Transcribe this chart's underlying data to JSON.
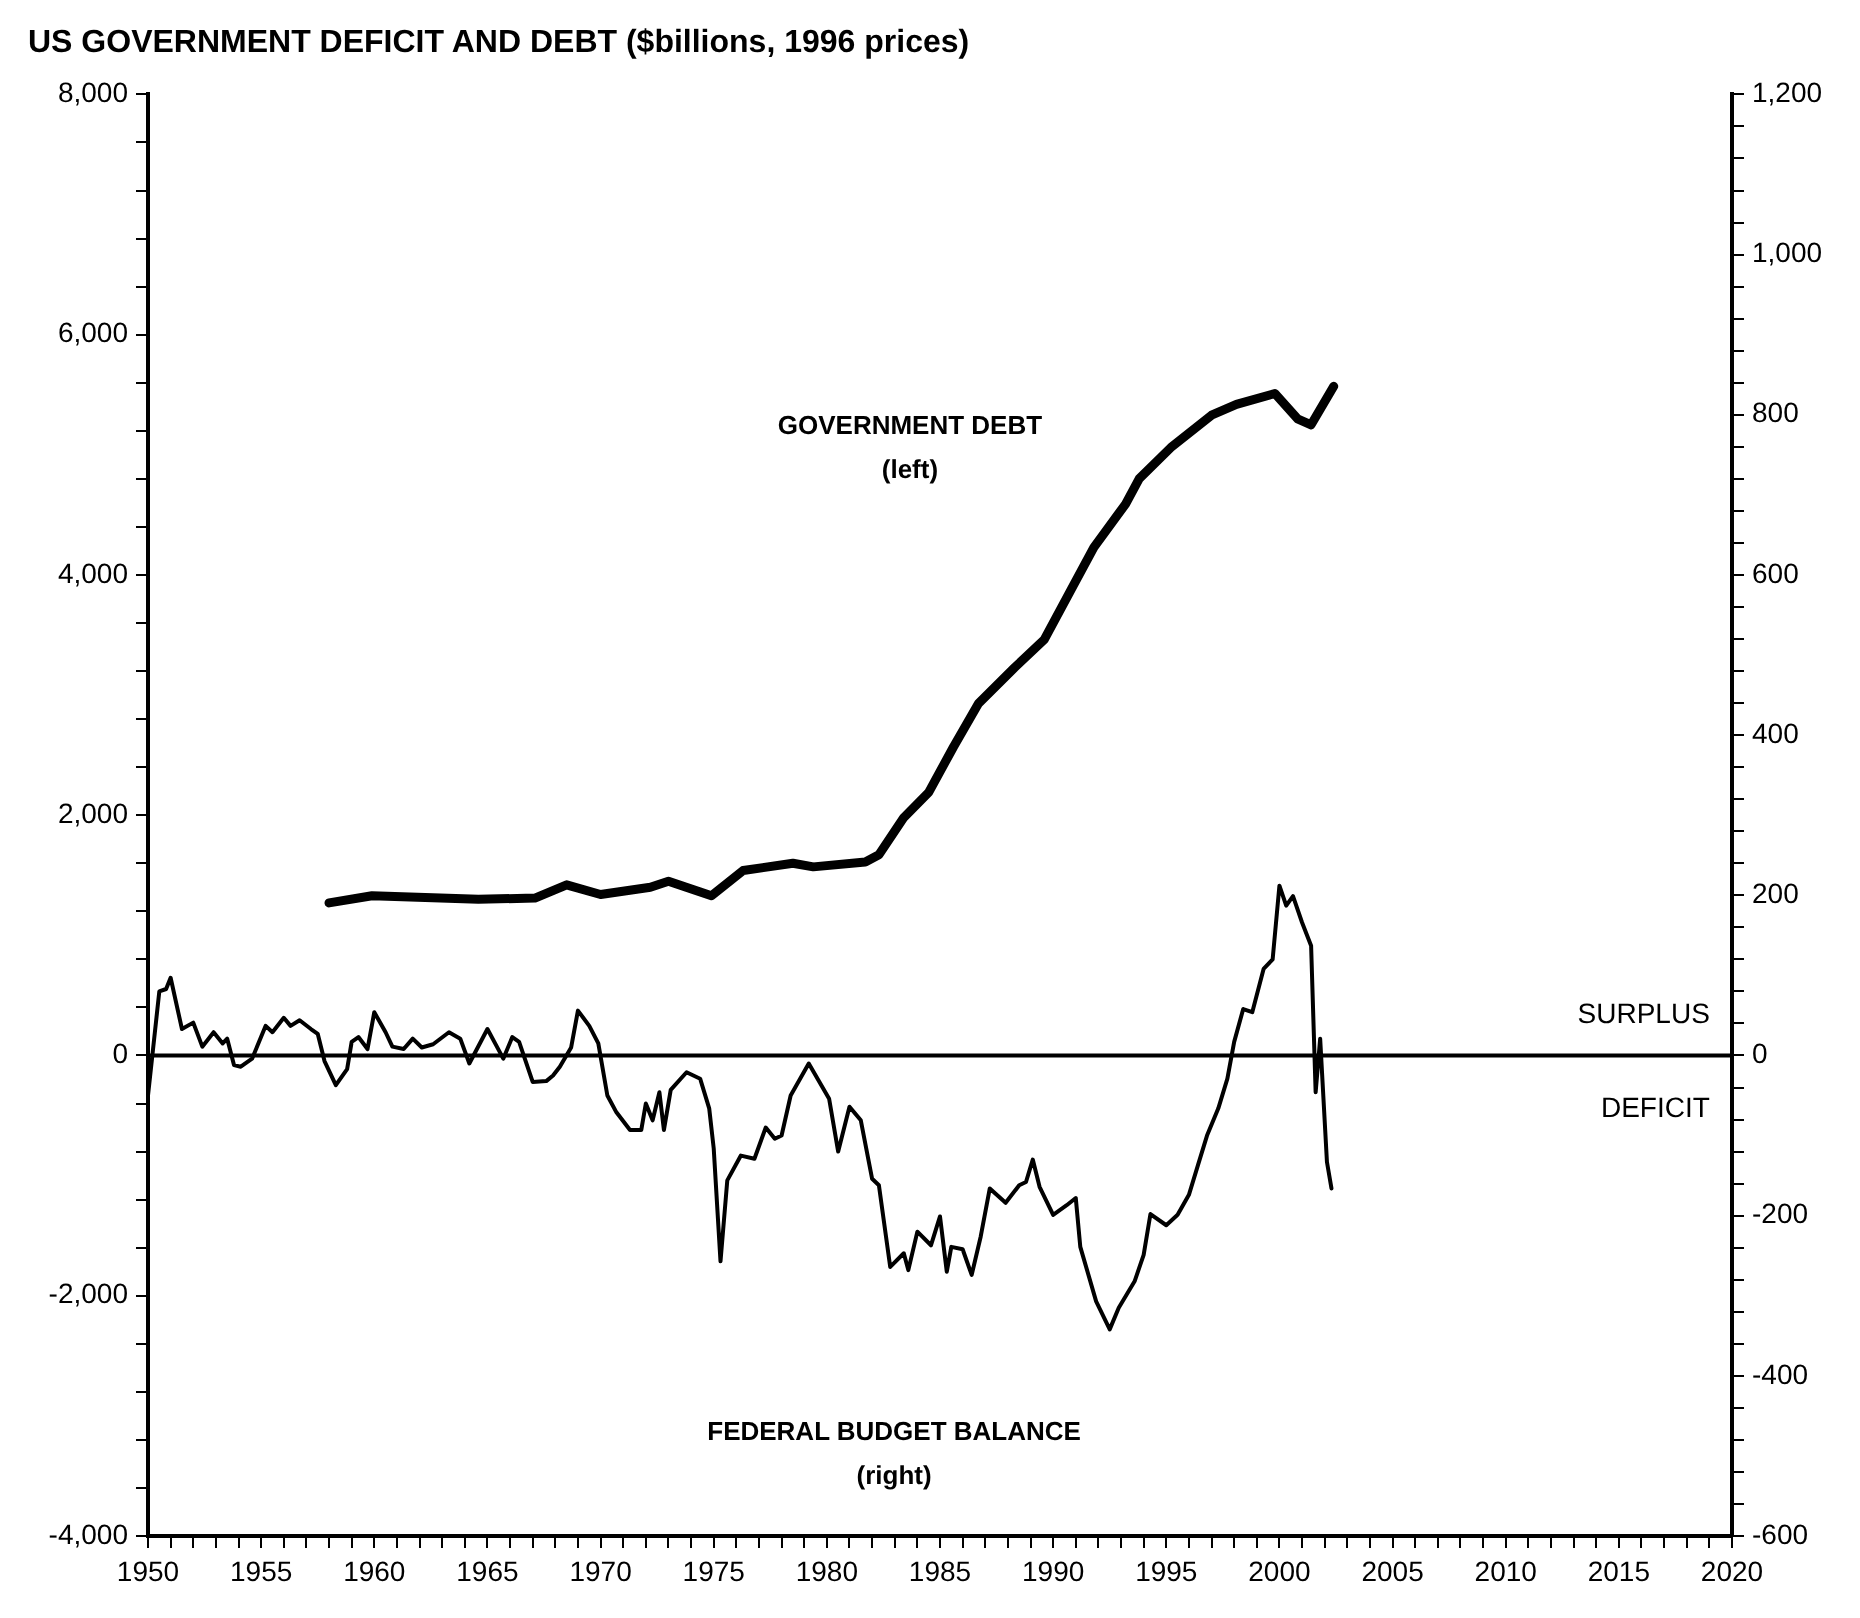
{
  "chart_data": {
    "type": "line",
    "title": "US GOVERNMENT DEFICIT AND DEBT ($billions, 1996 prices)",
    "xlim": [
      1950,
      2020
    ],
    "xticks": [
      1950,
      {
        "value": 1951,
        "label": null
      },
      {
        "value": 1952,
        "label": null
      },
      {
        "value": 1953,
        "label": null
      },
      {
        "value": 1954,
        "label": null
      },
      1955,
      {
        "value": 1956,
        "label": null
      },
      {
        "value": 1957,
        "label": null
      },
      {
        "value": 1958,
        "label": null
      },
      {
        "value": 1959,
        "label": null
      },
      1960,
      {
        "value": 1961,
        "label": null
      },
      {
        "value": 1962,
        "label": null
      },
      {
        "value": 1963,
        "label": null
      },
      {
        "value": 1964,
        "label": null
      },
      1965,
      {
        "value": 1966,
        "label": null
      },
      {
        "value": 1967,
        "label": null
      },
      {
        "value": 1968,
        "label": null
      },
      {
        "value": 1969,
        "label": null
      },
      1970,
      {
        "value": 1971,
        "label": null
      },
      {
        "value": 1972,
        "label": null
      },
      {
        "value": 1973,
        "label": null
      },
      {
        "value": 1974,
        "label": null
      },
      1975,
      {
        "value": 1976,
        "label": null
      },
      {
        "value": 1977,
        "label": null
      },
      {
        "value": 1978,
        "label": null
      },
      {
        "value": 1979,
        "label": null
      },
      1980,
      {
        "value": 1981,
        "label": null
      },
      {
        "value": 1982,
        "label": null
      },
      {
        "value": 1983,
        "label": null
      },
      {
        "value": 1984,
        "label": null
      },
      1985,
      {
        "value": 1986,
        "label": null
      },
      {
        "value": 1987,
        "label": null
      },
      {
        "value": 1988,
        "label": null
      },
      {
        "value": 1989,
        "label": null
      },
      1990,
      {
        "value": 1991,
        "label": null
      },
      {
        "value": 1992,
        "label": null
      },
      {
        "value": 1993,
        "label": null
      },
      {
        "value": 1994,
        "label": null
      },
      1995,
      {
        "value": 1996,
        "label": null
      },
      {
        "value": 1997,
        "label": null
      },
      {
        "value": 1998,
        "label": null
      },
      {
        "value": 1999,
        "label": null
      },
      2000,
      {
        "value": 2001,
        "label": null
      },
      {
        "value": 2002,
        "label": null
      },
      {
        "value": 2003,
        "label": null
      },
      {
        "value": 2004,
        "label": null
      },
      2005,
      {
        "value": 2006,
        "label": null
      },
      {
        "value": 2007,
        "label": null
      },
      {
        "value": 2008,
        "label": null
      },
      {
        "value": 2009,
        "label": null
      },
      2010,
      {
        "value": 2011,
        "label": null
      },
      {
        "value": 2012,
        "label": null
      },
      {
        "value": 2013,
        "label": null
      },
      {
        "value": 2014,
        "label": null
      },
      2015,
      {
        "value": 2016,
        "label": null
      },
      {
        "value": 2017,
        "label": null
      },
      {
        "value": 2018,
        "label": null
      },
      {
        "value": 2019,
        "label": null
      },
      2020
    ],
    "ylim": [
      -4000,
      8000
    ],
    "yticks": [
      {
        "value": -4000,
        "label": "-4,000"
      },
      {
        "value": -3600,
        "label": null
      },
      {
        "value": -3200,
        "label": null
      },
      {
        "value": -2800,
        "label": null
      },
      {
        "value": -2400,
        "label": null
      },
      {
        "value": -2000,
        "label": "-2,000"
      },
      {
        "value": -1600,
        "label": null
      },
      {
        "value": -1200,
        "label": null
      },
      {
        "value": -800,
        "label": null
      },
      {
        "value": -400,
        "label": null
      },
      0,
      {
        "value": 400,
        "label": null
      },
      {
        "value": 800,
        "label": null
      },
      {
        "value": 1200,
        "label": null
      },
      {
        "value": 1600,
        "label": null
      },
      {
        "value": 2000,
        "label": "2,000"
      },
      {
        "value": 2400,
        "label": null
      },
      {
        "value": 2800,
        "label": null
      },
      {
        "value": 3200,
        "label": null
      },
      {
        "value": 3600,
        "label": null
      },
      {
        "value": 4000,
        "label": "4,000"
      },
      {
        "value": 4400,
        "label": null
      },
      {
        "value": 4800,
        "label": null
      },
      {
        "value": 5200,
        "label": null
      },
      {
        "value": 5600,
        "label": null
      },
      {
        "value": 6000,
        "label": "6,000"
      },
      {
        "value": 6400,
        "label": null
      },
      {
        "value": 6800,
        "label": null
      },
      {
        "value": 7200,
        "label": null
      },
      {
        "value": 7600,
        "label": null
      },
      {
        "value": 8000,
        "label": "8,000"
      }
    ],
    "y2lim": [
      -600,
      1200
    ],
    "y2ticks": [
      -600,
      {
        "value": -560,
        "label": null
      },
      {
        "value": -520,
        "label": null
      },
      {
        "value": -480,
        "label": null
      },
      {
        "value": -440,
        "label": null
      },
      -400,
      {
        "value": -360,
        "label": null
      },
      {
        "value": -320,
        "label": null
      },
      {
        "value": -280,
        "label": null
      },
      {
        "value": -240,
        "label": null
      },
      -200,
      {
        "value": -160,
        "label": null
      },
      {
        "value": -120,
        "label": null
      },
      {
        "value": -80,
        "label": null
      },
      {
        "value": -40,
        "label": null
      },
      0,
      {
        "value": 40,
        "label": null
      },
      {
        "value": 80,
        "label": null
      },
      {
        "value": 120,
        "label": null
      },
      {
        "value": 160,
        "label": null
      },
      200,
      {
        "value": 240,
        "label": null
      },
      {
        "value": 280,
        "label": null
      },
      {
        "value": 320,
        "label": null
      },
      {
        "value": 360,
        "label": null
      },
      400,
      {
        "value": 440,
        "label": null
      },
      {
        "value": 480,
        "label": null
      },
      {
        "value": 520,
        "label": null
      },
      {
        "value": 560,
        "label": null
      },
      600,
      {
        "value": 640,
        "label": null
      },
      {
        "value": 680,
        "label": null
      },
      {
        "value": 720,
        "label": null
      },
      {
        "value": 760,
        "label": null
      },
      800,
      {
        "value": 840,
        "label": null
      },
      {
        "value": 880,
        "label": null
      },
      {
        "value": 920,
        "label": null
      },
      {
        "value": 960,
        "label": null
      },
      {
        "value": 1000,
        "label": "1,000"
      },
      {
        "value": 1040,
        "label": null
      },
      {
        "value": 1080,
        "label": null
      },
      {
        "value": 1120,
        "label": null
      },
      {
        "value": 1160,
        "label": null
      },
      {
        "value": 1200,
        "label": "1,200"
      }
    ],
    "grid": false,
    "legend": false,
    "marker": "none",
    "line_style": "solid",
    "series": [
      {
        "color": "#000000",
        "axis": "y",
        "x": [
          1958.0,
          1959.9,
          1964.6,
          1967.1,
          1968.5,
          1970.0,
          1972.2,
          1973.0,
          1974.9,
          1976.3,
          1978.5,
          1979.4,
          1981.7,
          1982.3,
          1983.4,
          1984.5,
          1985.6,
          1986.7,
          1988.3,
          1989.6,
          1990.8,
          1991.8,
          1993.2,
          1993.8,
          1995.2,
          1997.0,
          1998.1,
          1999.8,
          2000.8,
          2001.4,
          2002.4
        ],
        "values": [
          1270,
          1330,
          1300,
          1310,
          1420,
          1340,
          1400,
          1450,
          1330,
          1540,
          1600,
          1570,
          1610,
          1670,
          1980,
          2190,
          2570,
          2930,
          3230,
          3460,
          3880,
          4230,
          4590,
          4800,
          5060,
          5330,
          5420,
          5510,
          5300,
          5250,
          5570
        ]
      },
      {
        "color": "#000000",
        "axis": "y2",
        "x": [
          1950.0,
          1950.5,
          1950.8,
          1951.0,
          1951.5,
          1952.0,
          1952.4,
          1952.9,
          1953.3,
          1953.5,
          1953.8,
          1954.1,
          1954.6,
          1955.2,
          1955.5,
          1956.0,
          1956.3,
          1956.7,
          1957.2,
          1957.5,
          1957.8,
          1958.3,
          1958.8,
          1959.0,
          1959.3,
          1959.7,
          1960.0,
          1960.5,
          1960.8,
          1961.3,
          1961.7,
          1962.1,
          1962.6,
          1963.3,
          1963.8,
          1964.2,
          1965.0,
          1965.4,
          1965.7,
          1966.1,
          1966.4,
          1967.0,
          1967.6,
          1967.9,
          1968.2,
          1968.7,
          1969.0,
          1969.5,
          1969.9,
          1970.3,
          1970.7,
          1971.3,
          1971.8,
          1972.0,
          1972.3,
          1972.6,
          1972.8,
          1973.1,
          1973.8,
          1974.4,
          1974.8,
          1975.0,
          1975.3,
          1975.6,
          1976.2,
          1976.8,
          1977.3,
          1977.7,
          1978.0,
          1978.4,
          1979.2,
          1980.1,
          1980.5,
          1981.0,
          1981.5,
          1982.0,
          1982.3,
          1982.8,
          1983.4,
          1983.6,
          1984.0,
          1984.6,
          1985.0,
          1985.3,
          1985.5,
          1986.0,
          1986.4,
          1986.8,
          1987.2,
          1987.9,
          1988.5,
          1988.8,
          1989.1,
          1989.4,
          1990.0,
          1990.6,
          1991.0,
          1991.2,
          1991.9,
          1992.5,
          1992.9,
          1993.6,
          1994.0,
          1994.3,
          1995.0,
          1995.5,
          1996.0,
          1996.4,
          1996.8,
          1997.3,
          1997.7,
          1998.0,
          1998.4,
          1998.8,
          1999.3,
          1999.7,
          2000.0,
          2000.3,
          2000.6,
          2001.0,
          2001.4,
          2001.6,
          2001.8,
          2002.1,
          2002.3
        ],
        "values": [
          -50,
          80,
          83,
          97,
          33,
          41,
          11,
          29,
          15,
          21,
          -12,
          -14,
          -4,
          37,
          29,
          47,
          37,
          44,
          33,
          27,
          -7,
          -37,
          -17,
          17,
          23,
          8,
          54,
          29,
          11,
          8,
          21,
          10,
          14,
          29,
          21,
          -10,
          33,
          12,
          -4,
          23,
          17,
          -33,
          -32,
          -25,
          -14,
          10,
          56,
          37,
          15,
          -50,
          -71,
          -93,
          -93,
          -60,
          -81,
          -46,
          -93,
          -43,
          -21,
          -29,
          -66,
          -116,
          -257,
          -156,
          -125,
          -129,
          -90,
          -104,
          -100,
          -50,
          -10,
          -54,
          -120,
          -64,
          -81,
          -154,
          -162,
          -264,
          -247,
          -268,
          -220,
          -237,
          -201,
          -270,
          -239,
          -242,
          -274,
          -226,
          -166,
          -184,
          -162,
          -158,
          -130,
          -164,
          -199,
          -187,
          -178,
          -239,
          -307,
          -342,
          -315,
          -282,
          -249,
          -198,
          -212,
          -199,
          -174,
          -137,
          -100,
          -66,
          -29,
          17,
          58,
          54,
          108,
          120,
          212,
          187,
          199,
          166,
          137,
          -46,
          21,
          -133,
          -166
        ]
      }
    ],
    "ref_lines": [
      {
        "axis": "y",
        "value": 0,
        "color": "#000000"
      }
    ],
    "annotations": [
      "GOVERNMENT DEBT\n(left)",
      "SURPLUS",
      "DEFICIT",
      "FEDERAL BUDGET BALANCE\n(right)"
    ]
  }
}
